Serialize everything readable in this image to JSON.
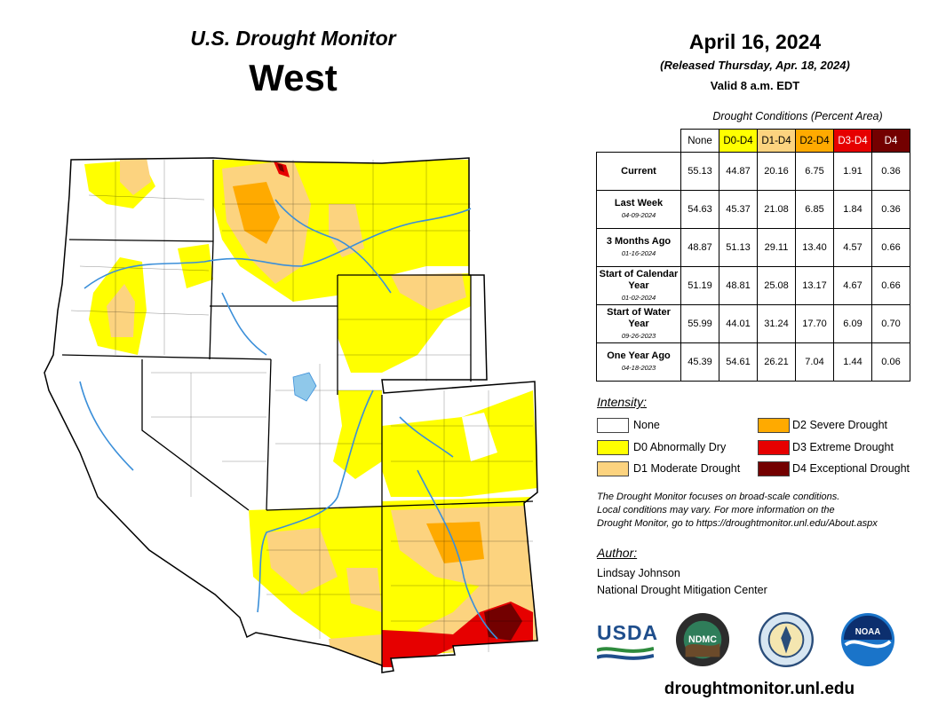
{
  "header": {
    "title": "U.S. Drought Monitor",
    "region": "West",
    "date": "April 16, 2024",
    "released": "(Released Thursday, Apr. 18, 2024)",
    "valid": "Valid 8 a.m. EDT"
  },
  "conditions": {
    "title": "Drought Conditions (Percent Area)",
    "columns": [
      "None",
      "D0-D4",
      "D1-D4",
      "D2-D4",
      "D3-D4",
      "D4"
    ],
    "rows": [
      {
        "label": "Current",
        "date": "",
        "values": [
          "55.13",
          "44.87",
          "20.16",
          "6.75",
          "1.91",
          "0.36"
        ]
      },
      {
        "label": "Last Week",
        "date": "04-09-2024",
        "values": [
          "54.63",
          "45.37",
          "21.08",
          "6.85",
          "1.84",
          "0.36"
        ]
      },
      {
        "label": "3 Months Ago",
        "date": "01-16-2024",
        "values": [
          "48.87",
          "51.13",
          "29.11",
          "13.40",
          "4.57",
          "0.66"
        ]
      },
      {
        "label": "Start of Calendar Year",
        "date": "01-02-2024",
        "values": [
          "51.19",
          "48.81",
          "25.08",
          "13.17",
          "4.67",
          "0.66"
        ]
      },
      {
        "label": "Start of Water Year",
        "date": "09-26-2023",
        "values": [
          "55.99",
          "44.01",
          "31.24",
          "17.70",
          "6.09",
          "0.70"
        ]
      },
      {
        "label": "One Year Ago",
        "date": "04-18-2023",
        "values": [
          "45.39",
          "54.61",
          "26.21",
          "7.04",
          "1.44",
          "0.06"
        ]
      }
    ]
  },
  "legend": {
    "title": "Intensity:",
    "items": [
      {
        "label": "None",
        "color": "#ffffff"
      },
      {
        "label": "D0 Abnormally Dry",
        "color": "#ffff00"
      },
      {
        "label": "D1 Moderate Drought",
        "color": "#fcd37f"
      },
      {
        "label": "D2 Severe Drought",
        "color": "#ffaa00"
      },
      {
        "label": "D3 Extreme Drought",
        "color": "#e60000"
      },
      {
        "label": "D4 Exceptional Drought",
        "color": "#730000"
      }
    ]
  },
  "note": {
    "line1": "The Drought Monitor focuses on broad-scale conditions.",
    "line2": "Local conditions may vary. For more information on the",
    "line3": "Drought Monitor, go to https://droughtmonitor.unl.edu/About.aspx"
  },
  "author": {
    "heading": "Author:",
    "name": "Lindsay Johnson",
    "org": "National Drought Mitigation Center"
  },
  "logos": {
    "usda": "USDA",
    "ndmc": "NDMC",
    "noaa": "NOAA"
  },
  "footer": {
    "url": "droughtmonitor.unl.edu"
  }
}
